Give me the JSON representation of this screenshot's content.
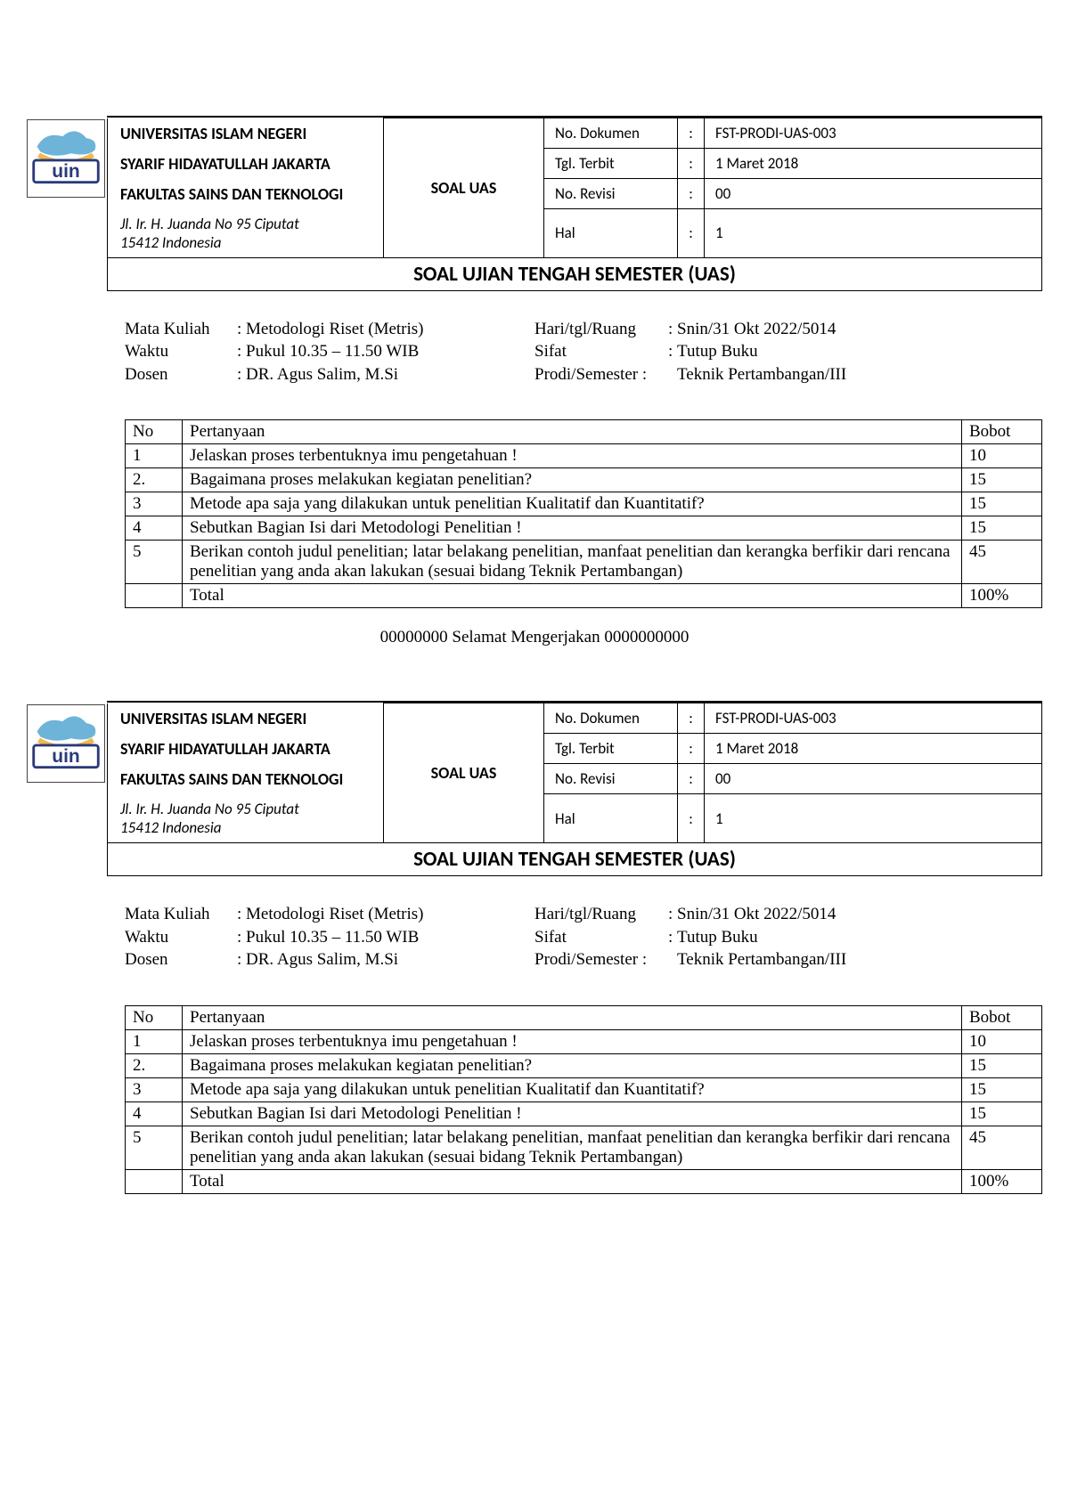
{
  "header": {
    "university": "UNIVERSITAS ISLAM NEGERI",
    "sub_university": "SYARIF HIDAYATULLAH JAKARTA",
    "faculty": "FAKULTAS SAINS DAN TEKNOLOGI",
    "address_line1": "Jl. Ir. H. Juanda No 95 Ciputat",
    "address_line2": "15412 Indonesia",
    "mid_label": "SOAL UAS",
    "meta": {
      "doc_no_label": "No. Dokumen",
      "doc_no_value": "FST-PRODI-UAS-003",
      "date_label": "Tgl. Terbit",
      "date_value": "1 Maret 2018",
      "rev_label": "No. Revisi",
      "rev_value": "00",
      "hal_label": "Hal",
      "hal_value": "1"
    },
    "title": "SOAL UJIAN TENGAH SEMESTER (UAS)"
  },
  "info": {
    "mata_kuliah_label": "Mata Kuliah",
    "mata_kuliah_value": ": Metodologi Riset (Metris)",
    "waktu_label": "Waktu",
    "waktu_value": ": Pukul 10.35 – 11.50 WIB",
    "dosen_label": "Dosen",
    "dosen_value": ": DR. Agus Salim, M.Si",
    "hari_label": "Hari/tgl/Ruang",
    "hari_value": "Snin/31 Okt 2022/5014",
    "sifat_label": "Sifat",
    "sifat_value": "Tutup Buku",
    "prodi_label": "Prodi/Semester :",
    "prodi_value": "Teknik Pertambangan/III"
  },
  "questions": {
    "head_no": "No",
    "head_pert": "Pertanyaan",
    "head_bobot": "Bobot",
    "rows": [
      {
        "no": "1",
        "q": "Jelaskan proses terbentuknya imu pengetahuan !",
        "b": "10"
      },
      {
        "no": "2.",
        "q": "Bagaimana proses melakukan kegiatan penelitian?",
        "b": "15"
      },
      {
        "no": "3",
        "q": "Metode apa saja yang dilakukan untuk penelitian Kualitatif dan Kuantitatif?",
        "b": "15"
      },
      {
        "no": "4",
        "q": "Sebutkan Bagian Isi dari Metodologi Penelitian !",
        "b": "15"
      },
      {
        "no": "5",
        "q": "Berikan contoh judul penelitian; latar belakang penelitian, manfaat penelitian dan kerangka berfikir dari rencana penelitian yang anda akan lakukan (sesuai bidang Teknik Pertambangan)",
        "b": "45"
      }
    ],
    "total_label": "Total",
    "total_value": "100%"
  },
  "footer_msg": "00000000 Selamat Mengerjakan 0000000000",
  "logo": {
    "text": "uin",
    "text_color": "#2a3a7a",
    "border_color": "#2a3a7a",
    "cloud_color": "#6db4d8",
    "arc_color": "#f2b84b"
  }
}
